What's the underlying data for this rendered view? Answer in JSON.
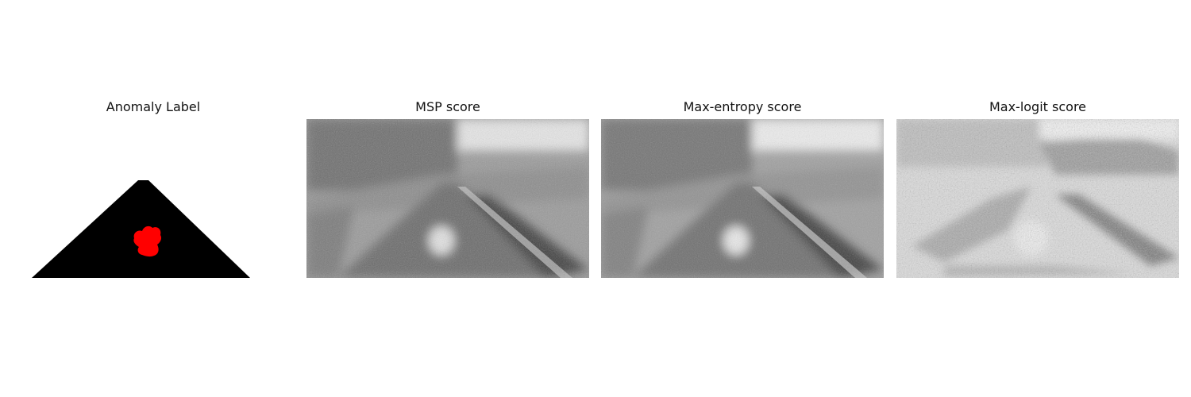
{
  "panels": [
    {
      "title": "Anomaly Label",
      "kind": "label-mask",
      "mask_color": "#000000",
      "anomaly_color": "#ff0000"
    },
    {
      "title": "MSP score",
      "kind": "score-heatmap",
      "colormap": "grayscale"
    },
    {
      "title": "Max-entropy score",
      "kind": "score-heatmap",
      "colormap": "grayscale"
    },
    {
      "title": "Max-logit score",
      "kind": "score-heatmap",
      "colormap": "grayscale"
    }
  ]
}
